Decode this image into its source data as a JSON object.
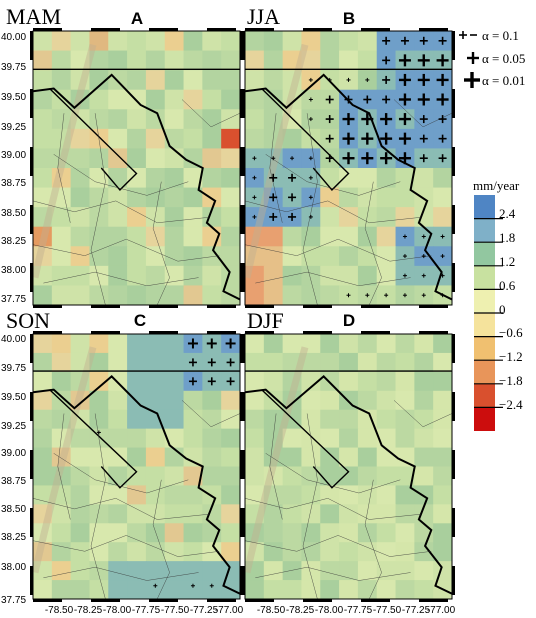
{
  "figure": {
    "panels": [
      {
        "season": "MAM",
        "letter": "A",
        "bands": [],
        "high_cells": [],
        "low_cells": [],
        "sig_cells": []
      },
      {
        "season": "JJA",
        "letter": "B",
        "bands": [
          "upper-right",
          "left-middle",
          "bottom-right"
        ],
        "high_cells": [],
        "low_cells": [],
        "sig_cells": []
      },
      {
        "season": "SON",
        "letter": "C",
        "bands": [
          "upper-right-corner"
        ],
        "high_cells": [],
        "low_cells": [],
        "sig_cells": []
      },
      {
        "season": "DJF",
        "letter": "D",
        "bands": [],
        "high_cells": [],
        "low_cells": [],
        "sig_cells": []
      }
    ],
    "y_ticks": [
      "40.00",
      "39.75",
      "39.50",
      "39.25",
      "39.00",
      "38.75",
      "38.50",
      "38.25",
      "38.00",
      "37.75"
    ],
    "x_ticks": [
      "-78.50",
      "-78.25",
      "-78.00",
      "-77.75",
      "-77.50",
      "-77.25",
      "-77.00"
    ],
    "significance": [
      {
        "label": "α = 0.1",
        "marker_size": "small"
      },
      {
        "label": "α = 0.05",
        "marker_size": "medium"
      },
      {
        "label": "α = 0.01",
        "marker_size": "large"
      }
    ],
    "legend": {
      "title": "mm/year",
      "colors": [
        "#4f85c4",
        "#7fb0c8",
        "#92c7a0",
        "#c8e1a0",
        "#eef0b0",
        "#f5e39c",
        "#f0c070",
        "#e8955a",
        "#d9502e",
        "#cc0d0d"
      ],
      "labels": [
        "2.4",
        "1.8",
        "1.2",
        "0.6",
        "0",
        "−0.6",
        "−1.2",
        "−1.8",
        "−2.4"
      ]
    },
    "colors": {
      "base": "#bcd9a2",
      "light": "#d5e6aa",
      "warm": "#e8d59a",
      "blue": "#6f9fc9",
      "teal": "#8bbcb4",
      "relief": "#c0b090"
    }
  }
}
